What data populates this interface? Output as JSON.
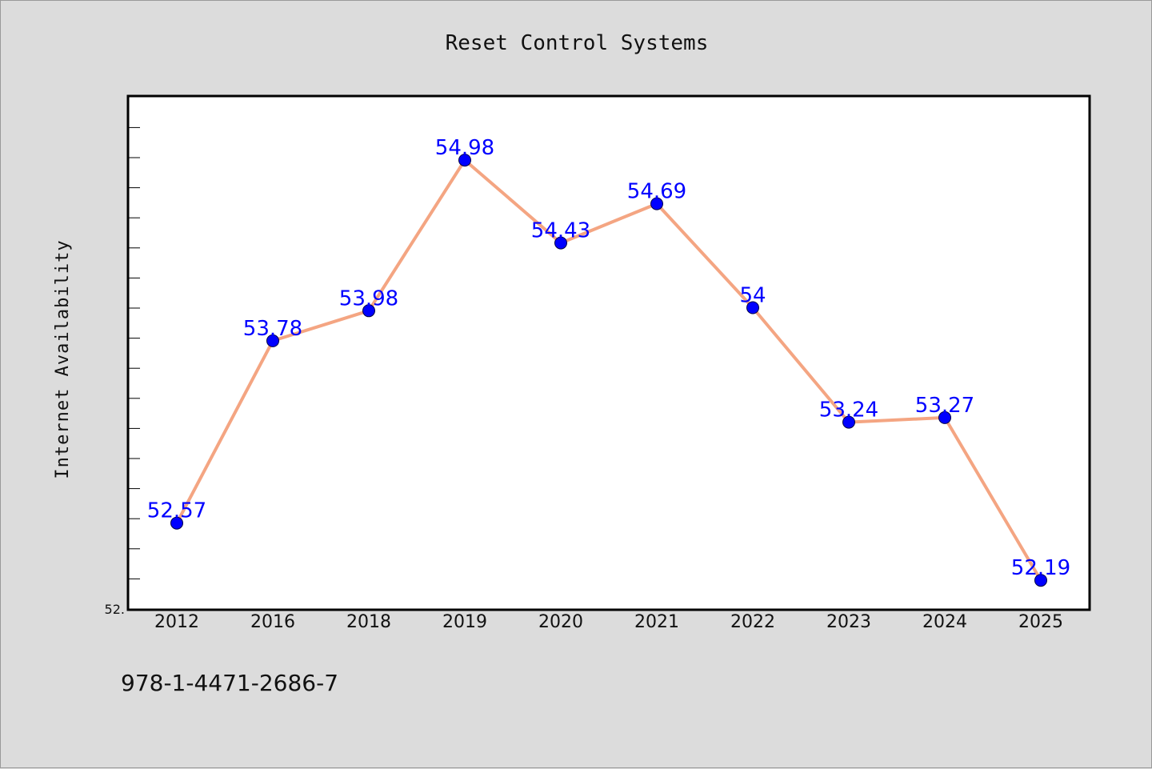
{
  "chart_data": {
    "type": "line",
    "title": "Reset Control Systems",
    "xlabel": "",
    "ylabel": "Internet Availability",
    "categories": [
      "2012",
      "2016",
      "2018",
      "2019",
      "2020",
      "2021",
      "2022",
      "2023",
      "2024",
      "2025"
    ],
    "series": [
      {
        "values": [
          52.57,
          53.78,
          53.98,
          54.98,
          54.43,
          54.69,
          54,
          53.24,
          53.27,
          52.19
        ],
        "labels": [
          "52.57",
          "53.78",
          "53.98",
          "54.98",
          "54.43",
          "54.69",
          "54",
          "53.24",
          "53.27",
          "52.19"
        ]
      }
    ],
    "ylim": [
      52,
      55.4
    ],
    "y_tick_labels": [
      "52."
    ],
    "grid": false,
    "legend": "none",
    "colors": {
      "line": "#f4a582",
      "marker": "#0000ff",
      "label": "#0000ff",
      "plot_bg": "#ffffff",
      "page_bg": "#dcdcdc"
    }
  },
  "footer": {
    "text": "978-1-4471-2686-7"
  }
}
